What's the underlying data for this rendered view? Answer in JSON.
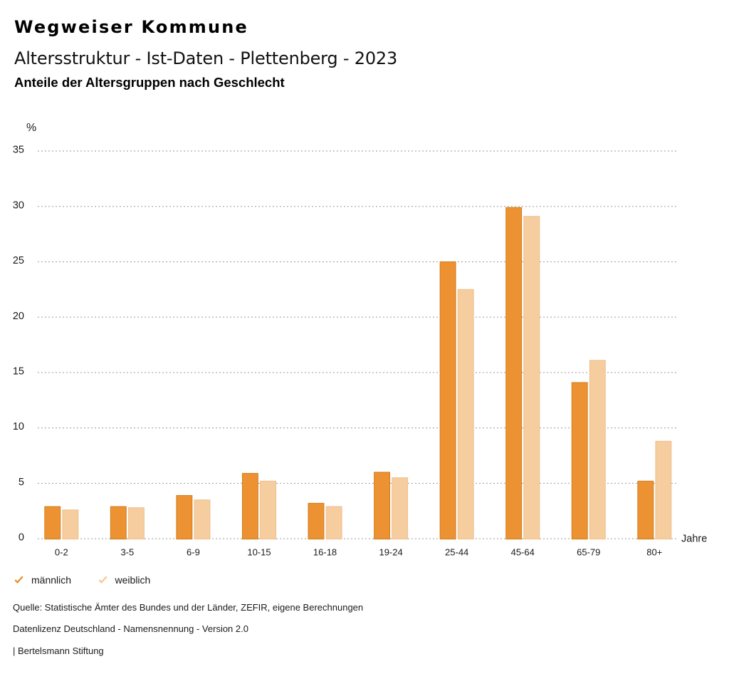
{
  "header": {
    "title": "Wegweiser Kommune",
    "subtitle": "Altersstruktur - Ist-Daten - Plettenberg - 2023",
    "heading": "Anteile der Altersgruppen nach Geschlecht"
  },
  "chart_data": {
    "type": "bar",
    "title": "Anteile der Altersgruppen nach Geschlecht",
    "categories": [
      "0-2",
      "3-5",
      "6-9",
      "10-15",
      "16-18",
      "19-24",
      "25-44",
      "45-64",
      "65-79",
      "80+"
    ],
    "series": [
      {
        "name": "männlich",
        "color": "#EC9233",
        "border_color": "#D07D1A",
        "values": [
          2.9,
          2.9,
          3.9,
          5.9,
          3.2,
          6.0,
          25.0,
          29.9,
          14.1,
          5.2
        ]
      },
      {
        "name": "weiblich",
        "color": "#F6CD9E",
        "border_color": "#EFBE8C",
        "values": [
          2.6,
          2.8,
          3.5,
          5.2,
          2.9,
          5.5,
          22.5,
          29.1,
          16.1,
          8.8
        ]
      }
    ],
    "ylabel": "%",
    "xlabel": "Jahre",
    "ylim": [
      0,
      35
    ],
    "ytick_step": 5,
    "yticks": [
      0,
      5,
      10,
      15,
      20,
      25,
      30,
      35
    ],
    "grid": "horizontal dotted",
    "gridline_color": "#9a9a9a",
    "legend_position": "bottom-left"
  },
  "legend": {
    "items": [
      {
        "label": "männlich",
        "color": "#E78F28"
      },
      {
        "label": "weiblich",
        "color": "#F5C893"
      }
    ]
  },
  "footer": {
    "lines": [
      "Quelle: Statistische Ämter des Bundes und der Länder, ZEFIR, eigene Berechnungen",
      "Datenlizenz Deutschland - Namensnennung - Version 2.0",
      "| Bertelsmann Stiftung"
    ]
  }
}
